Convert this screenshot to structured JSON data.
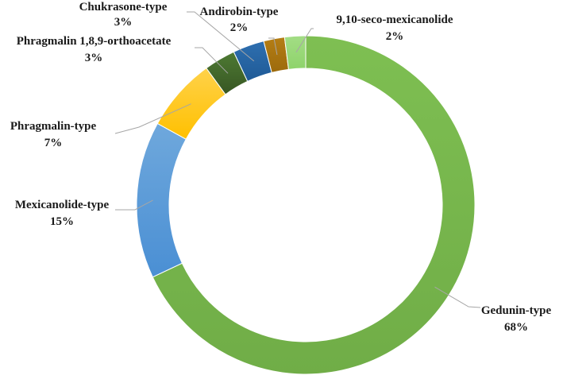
{
  "chart_data": {
    "type": "pie",
    "title": "",
    "slices": [
      {
        "name": "Gedunin-type",
        "value": 68,
        "label": "68%",
        "color": "#70AD47",
        "color_light": "#7EBF52"
      },
      {
        "name": "Mexicanolide-type",
        "value": 15,
        "label": "15%",
        "color": "#4A8FD4",
        "color_light": "#6FA8DC"
      },
      {
        "name": "Phragmalin-type",
        "value": 7,
        "label": "7%",
        "color": "#FFC000",
        "color_light": "#FFD24A"
      },
      {
        "name": "Phragmalin 1,8,9-orthoacetate",
        "value": 3,
        "label": "3%",
        "color": "#375623",
        "color_light": "#4E7A33"
      },
      {
        "name": "Chukrasone-type",
        "value": 3,
        "label": "3%",
        "color": "#1F5A96",
        "color_light": "#2E6FB0"
      },
      {
        "name": "Andirobin-type",
        "value": 2,
        "label": "2%",
        "color": "#9C6A0C",
        "color_light": "#B57E14"
      },
      {
        "name": "9,10-seco-mexicanolide",
        "value": 2,
        "label": "2%",
        "color": "#8ED36B",
        "color_light": "#A3DD85"
      }
    ],
    "legend": "none",
    "labels": "outside with leader lines"
  }
}
